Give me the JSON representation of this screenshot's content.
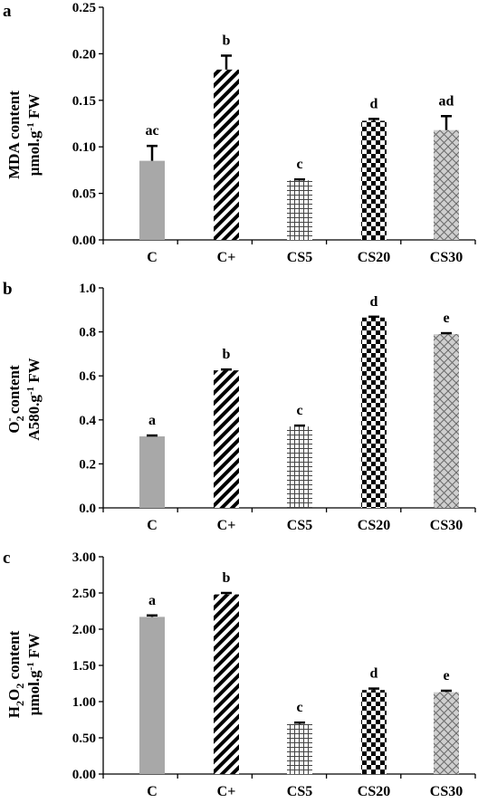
{
  "chart_data": [
    {
      "type": "bar",
      "panel_label": "a",
      "categories": [
        "C",
        "C+",
        "CS5",
        "CS20",
        "CS30"
      ],
      "values": [
        0.085,
        0.183,
        0.064,
        0.128,
        0.118
      ],
      "errors": [
        0.016,
        0.015,
        0.001,
        0.002,
        0.015
      ],
      "significance": [
        "ac",
        "b",
        "c",
        "d",
        "ad"
      ],
      "ylabel_line1": "MDA content",
      "ylabel_line2_main": "µmol.g",
      "ylabel_line2_sup": "-1",
      "ylabel_line2_tail": " FW",
      "ylim": [
        0,
        0.25
      ],
      "yticks": [
        "0.00",
        "0.05",
        "0.10",
        "0.15",
        "0.20",
        "0.25"
      ],
      "patterns": [
        "solid",
        "diagonal",
        "grid",
        "checker",
        "lattice"
      ],
      "colors": {
        "bar_solid": "#a8a8a8",
        "bar_dark": "#000000",
        "bar_light": "#ffffff",
        "axis": "#000000"
      },
      "grid": false,
      "legend": "none"
    },
    {
      "type": "bar",
      "panel_label": "b",
      "categories": [
        "C",
        "C+",
        "CS5",
        "CS20",
        "CS30"
      ],
      "values": [
        0.325,
        0.625,
        0.37,
        0.865,
        0.79
      ],
      "errors": [
        0.004,
        0.004,
        0.004,
        0.004,
        0.004
      ],
      "significance": [
        "a",
        "b",
        "c",
        "d",
        "e"
      ],
      "ylabel_line1_main": "O",
      "ylabel_line1_sub": "2",
      "ylabel_line1_sup": "-",
      "ylabel_line1_tail": " content",
      "ylabel_line2_main": "A580.g",
      "ylabel_line2_sup": "-1",
      "ylabel_line2_tail": " FW",
      "ylim": [
        0,
        1.0
      ],
      "yticks": [
        "0.0",
        "0.2",
        "0.4",
        "0.6",
        "0.8",
        "1.0"
      ],
      "patterns": [
        "solid",
        "diagonal",
        "grid",
        "checker",
        "lattice"
      ],
      "grid": false,
      "legend": "none"
    },
    {
      "type": "bar",
      "panel_label": "c",
      "categories": [
        "C",
        "C+",
        "CS5",
        "CS20",
        "CS30"
      ],
      "values": [
        2.17,
        2.48,
        0.69,
        1.16,
        1.13
      ],
      "errors": [
        0.02,
        0.02,
        0.02,
        0.02,
        0.02
      ],
      "significance": [
        "a",
        "b",
        "c",
        "d",
        "e"
      ],
      "ylabel_line1_main": "H",
      "ylabel_line1_sub1": "2",
      "ylabel_line1_mid": "O",
      "ylabel_line1_sub2": "2",
      "ylabel_line1_tail": " content",
      "ylabel_line2_main": "µmol.g",
      "ylabel_line2_sup": "-1",
      "ylabel_line2_tail": " FW",
      "ylim": [
        0,
        3.0
      ],
      "yticks": [
        "0.00",
        "0.50",
        "1.00",
        "1.50",
        "2.00",
        "2.50",
        "3.00"
      ],
      "patterns": [
        "solid",
        "diagonal",
        "grid",
        "checker",
        "lattice"
      ],
      "grid": false,
      "legend": "none"
    }
  ]
}
